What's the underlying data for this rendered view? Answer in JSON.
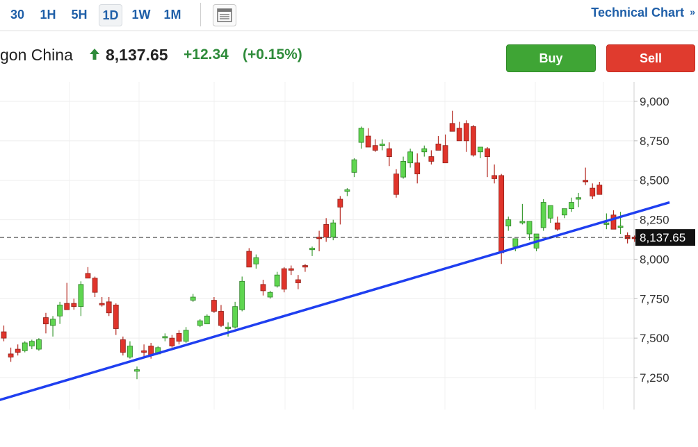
{
  "toolbar": {
    "timeframes": [
      {
        "label": "30",
        "active": false
      },
      {
        "label": "1H",
        "active": false
      },
      {
        "label": "5H",
        "active": false
      },
      {
        "label": "1D",
        "active": true
      },
      {
        "label": "1W",
        "active": false
      },
      {
        "label": "1M",
        "active": false
      }
    ],
    "layout_icon": "layout-icon",
    "technical_chart_label": "Technical Chart",
    "technical_chart_chevron": "»"
  },
  "quote": {
    "name": "gon China",
    "direction": "up",
    "price": "8,137.65",
    "change": "+12.34",
    "change_percent": "(+0.15%)"
  },
  "buttons": {
    "buy_label": "Buy",
    "sell_label": "Sell"
  },
  "colors": {
    "up": "#5fd650",
    "down": "#e0342b",
    "trendline": "#1f3ff0",
    "link": "#1f5fa8",
    "positive_text": "#2e8b3a"
  },
  "chart_data": {
    "type": "candlestick",
    "y_axis": {
      "ticks": [
        7250,
        7500,
        7750,
        8000,
        8250,
        8500,
        8750,
        9000
      ],
      "tick_labels": [
        "7,250",
        "7,500",
        "7,750",
        "8,000",
        "8,250",
        "8,500",
        "8,750",
        "9,000"
      ],
      "range": [
        7110,
        9110
      ],
      "side": "right"
    },
    "last_price": 8137.65,
    "last_price_label": "8,137.65",
    "grid": true,
    "series": [
      {
        "values": [
          [
            7540,
            7580,
            7480,
            7500
          ],
          [
            7400,
            7440,
            7350,
            7380
          ],
          [
            7430,
            7460,
            7390,
            7410
          ],
          [
            7420,
            7480,
            7410,
            7470
          ],
          [
            7450,
            7490,
            7430,
            7480
          ],
          [
            7430,
            7500,
            7420,
            7490
          ],
          [
            7630,
            7660,
            7530,
            7590
          ],
          [
            7580,
            7640,
            7510,
            7620
          ],
          [
            7640,
            7730,
            7590,
            7710
          ],
          [
            7720,
            7850,
            7690,
            7680
          ],
          [
            7720,
            7750,
            7680,
            7700
          ],
          [
            7700,
            7860,
            7640,
            7840
          ],
          [
            7910,
            7950,
            7880,
            7880
          ],
          [
            7880,
            7890,
            7760,
            7790
          ],
          [
            7720,
            7760,
            7700,
            7710
          ],
          [
            7730,
            7760,
            7640,
            7660
          ],
          [
            7710,
            7720,
            7520,
            7560
          ],
          [
            7490,
            7510,
            7390,
            7410
          ],
          [
            7380,
            7480,
            7370,
            7450
          ],
          [
            7290,
            7320,
            7240,
            7300
          ],
          [
            7420,
            7460,
            7380,
            7410
          ],
          [
            7450,
            7470,
            7370,
            7390
          ],
          [
            7400,
            7450,
            7400,
            7440
          ],
          [
            7510,
            7530,
            7480,
            7510
          ],
          [
            7500,
            7520,
            7440,
            7450
          ],
          [
            7530,
            7550,
            7460,
            7480
          ],
          [
            7480,
            7570,
            7470,
            7550
          ],
          [
            7740,
            7780,
            7730,
            7760
          ],
          [
            7580,
            7620,
            7570,
            7610
          ],
          [
            7590,
            7650,
            7590,
            7640
          ],
          [
            7740,
            7760,
            7660,
            7670
          ],
          [
            7670,
            7710,
            7570,
            7580
          ],
          [
            7560,
            7600,
            7510,
            7570
          ],
          [
            7570,
            7730,
            7560,
            7700
          ],
          [
            7680,
            7890,
            7670,
            7860
          ],
          [
            8050,
            8070,
            7970,
            7950
          ],
          [
            7970,
            8030,
            7940,
            8010
          ],
          [
            7840,
            7870,
            7770,
            7800
          ],
          [
            7760,
            7800,
            7750,
            7790
          ],
          [
            7830,
            7920,
            7820,
            7900
          ],
          [
            7940,
            7950,
            7790,
            7810
          ],
          [
            7940,
            7960,
            7900,
            7930
          ],
          [
            7870,
            7900,
            7810,
            7850
          ],
          [
            7960,
            7970,
            7920,
            7950
          ],
          [
            8060,
            8080,
            8020,
            8070
          ],
          [
            8140,
            8180,
            8050,
            8130
          ],
          [
            8220,
            8260,
            8110,
            8140
          ],
          [
            8140,
            8250,
            8120,
            8230
          ],
          [
            8380,
            8400,
            8220,
            8330
          ],
          [
            8430,
            8450,
            8400,
            8440
          ],
          [
            8550,
            8640,
            8520,
            8630
          ],
          [
            8740,
            8840,
            8700,
            8830
          ],
          [
            8780,
            8830,
            8750,
            8710
          ],
          [
            8720,
            8760,
            8680,
            8690
          ],
          [
            8720,
            8760,
            8690,
            8730
          ],
          [
            8700,
            8740,
            8590,
            8650
          ],
          [
            8540,
            8570,
            8390,
            8410
          ],
          [
            8520,
            8650,
            8510,
            8620
          ],
          [
            8610,
            8700,
            8580,
            8680
          ],
          [
            8610,
            8670,
            8480,
            8540
          ],
          [
            8680,
            8720,
            8650,
            8700
          ],
          [
            8650,
            8690,
            8600,
            8620
          ],
          [
            8730,
            8780,
            8700,
            8690
          ],
          [
            8720,
            8790,
            8680,
            8610
          ],
          [
            8860,
            8940,
            8820,
            8810
          ],
          [
            8830,
            8870,
            8770,
            8750
          ],
          [
            8860,
            8880,
            8680,
            8750
          ],
          [
            8840,
            8850,
            8650,
            8660
          ],
          [
            8680,
            8700,
            8640,
            8710
          ],
          [
            8700,
            8710,
            8520,
            8650
          ],
          [
            8530,
            8600,
            8480,
            8510
          ],
          [
            8530,
            8540,
            7970,
            8040
          ],
          [
            8210,
            8270,
            8180,
            8250
          ],
          [
            8080,
            8120,
            8050,
            8130
          ],
          [
            8230,
            8350,
            8220,
            8240
          ],
          [
            8160,
            8190,
            8120,
            8240
          ],
          [
            8070,
            8140,
            8050,
            8160
          ],
          [
            8200,
            8380,
            8180,
            8360
          ],
          [
            8260,
            8300,
            8230,
            8340
          ],
          [
            8230,
            8270,
            8180,
            8190
          ],
          [
            8280,
            8310,
            8260,
            8320
          ],
          [
            8320,
            8390,
            8300,
            8360
          ],
          [
            8380,
            8420,
            8330,
            8390
          ],
          [
            8500,
            8580,
            8470,
            8490
          ],
          [
            8450,
            8480,
            8380,
            8400
          ],
          [
            8470,
            8490,
            8410,
            8410
          ],
          [
            8220,
            8290,
            8190,
            8230
          ],
          [
            8280,
            8310,
            8200,
            8190
          ],
          [
            8210,
            8300,
            8160,
            8210
          ],
          [
            8150,
            8170,
            8100,
            8130
          ],
          [
            8140,
            8150,
            8110,
            8130
          ]
        ]
      }
    ],
    "trendline": {
      "from": [
        -2,
        7090
      ],
      "to": [
        95,
        8360
      ]
    }
  }
}
